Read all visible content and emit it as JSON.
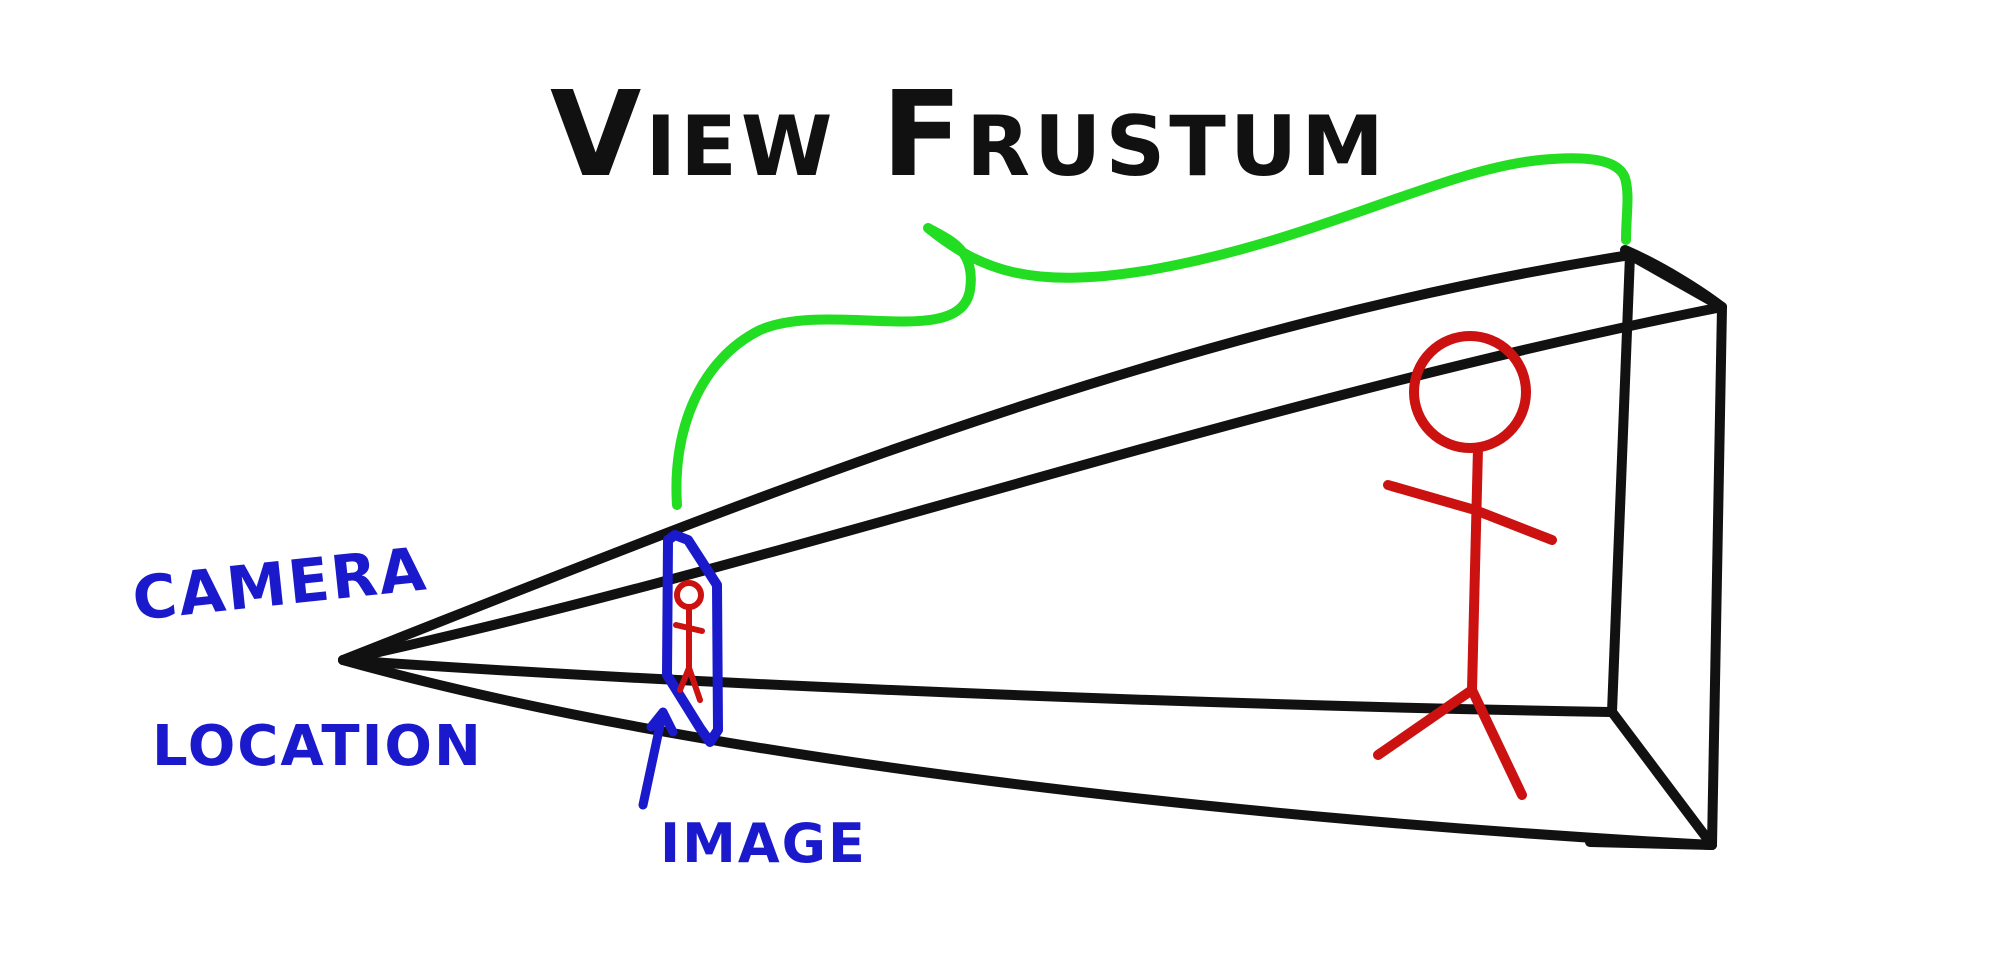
{
  "diagram": {
    "title": "View Frustum",
    "labels": {
      "camera": "Camera",
      "location": "Location",
      "image": "Image"
    },
    "colors": {
      "background": "#ffffff",
      "frustum": "#111111",
      "title": "#111111",
      "brace": "#22dd22",
      "figure": "#cc1111",
      "annotation": "#1a1acc"
    }
  }
}
